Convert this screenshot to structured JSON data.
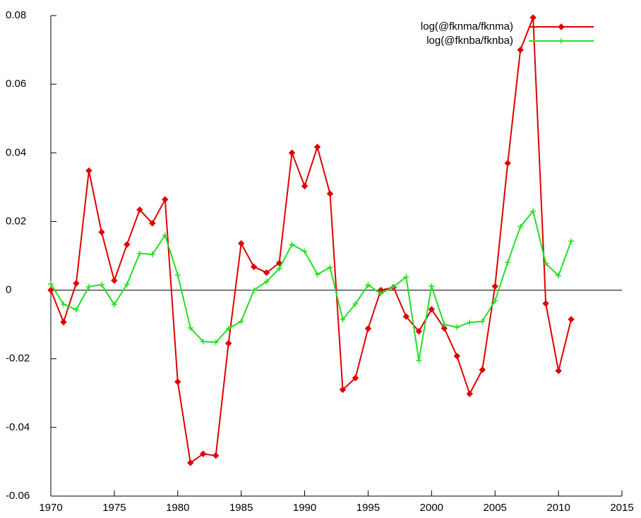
{
  "chart_data": {
    "type": "line",
    "x": [
      1970,
      1971,
      1972,
      1973,
      1974,
      1975,
      1976,
      1977,
      1978,
      1979,
      1980,
      1981,
      1982,
      1983,
      1984,
      1985,
      1986,
      1987,
      1988,
      1989,
      1990,
      1991,
      1992,
      1993,
      1994,
      1995,
      1996,
      1997,
      1998,
      1999,
      2000,
      2001,
      2002,
      2003,
      2004,
      2005,
      2006,
      2007,
      2008,
      2009,
      2010,
      2011
    ],
    "series": [
      {
        "name": "log(@fknma/fknma)",
        "color": "#e00000",
        "marker": "diamond",
        "values": [
          0.0,
          -0.0093,
          0.002,
          0.0348,
          0.0169,
          0.0028,
          0.0133,
          0.0234,
          0.0195,
          0.0264,
          -0.0267,
          -0.0503,
          -0.0477,
          -0.0482,
          -0.0155,
          0.0136,
          0.0068,
          0.0051,
          0.0079,
          0.04,
          0.0303,
          0.0417,
          0.0281,
          -0.029,
          -0.0256,
          -0.0112,
          0.0,
          0.0008,
          -0.0077,
          -0.012,
          -0.0056,
          -0.0111,
          -0.0192,
          -0.0302,
          -0.0232,
          0.0011,
          0.037,
          0.07,
          0.0794,
          -0.0039,
          -0.0235,
          -0.0085
        ]
      },
      {
        "name": "log(@fknba/fknba)",
        "color": "#22e022",
        "marker": "plus",
        "values": [
          0.0018,
          -0.0041,
          -0.0057,
          0.001,
          0.0016,
          -0.0042,
          0.0017,
          0.0107,
          0.0104,
          0.016,
          0.0044,
          -0.011,
          -0.015,
          -0.0152,
          -0.0112,
          -0.0091,
          0.0,
          0.0025,
          0.0063,
          0.0133,
          0.0113,
          0.0046,
          0.0066,
          -0.0086,
          -0.004,
          0.0015,
          -0.001,
          0.001,
          0.0038,
          -0.0205,
          0.0012,
          -0.01,
          -0.0108,
          -0.0094,
          -0.0091,
          -0.0031,
          0.0081,
          0.0185,
          0.023,
          0.0078,
          0.0042,
          0.0143
        ]
      }
    ],
    "xlim": [
      1970,
      2015
    ],
    "xticks": [
      1970,
      1975,
      1980,
      1985,
      1990,
      1995,
      2000,
      2005,
      2010,
      2015
    ],
    "ylim": [
      -0.06,
      0.08
    ],
    "yticks": [
      -0.06,
      -0.04,
      -0.02,
      0,
      0.02,
      0.04,
      0.06,
      0.08
    ],
    "zeroaxis": true,
    "legend": "top-right"
  }
}
